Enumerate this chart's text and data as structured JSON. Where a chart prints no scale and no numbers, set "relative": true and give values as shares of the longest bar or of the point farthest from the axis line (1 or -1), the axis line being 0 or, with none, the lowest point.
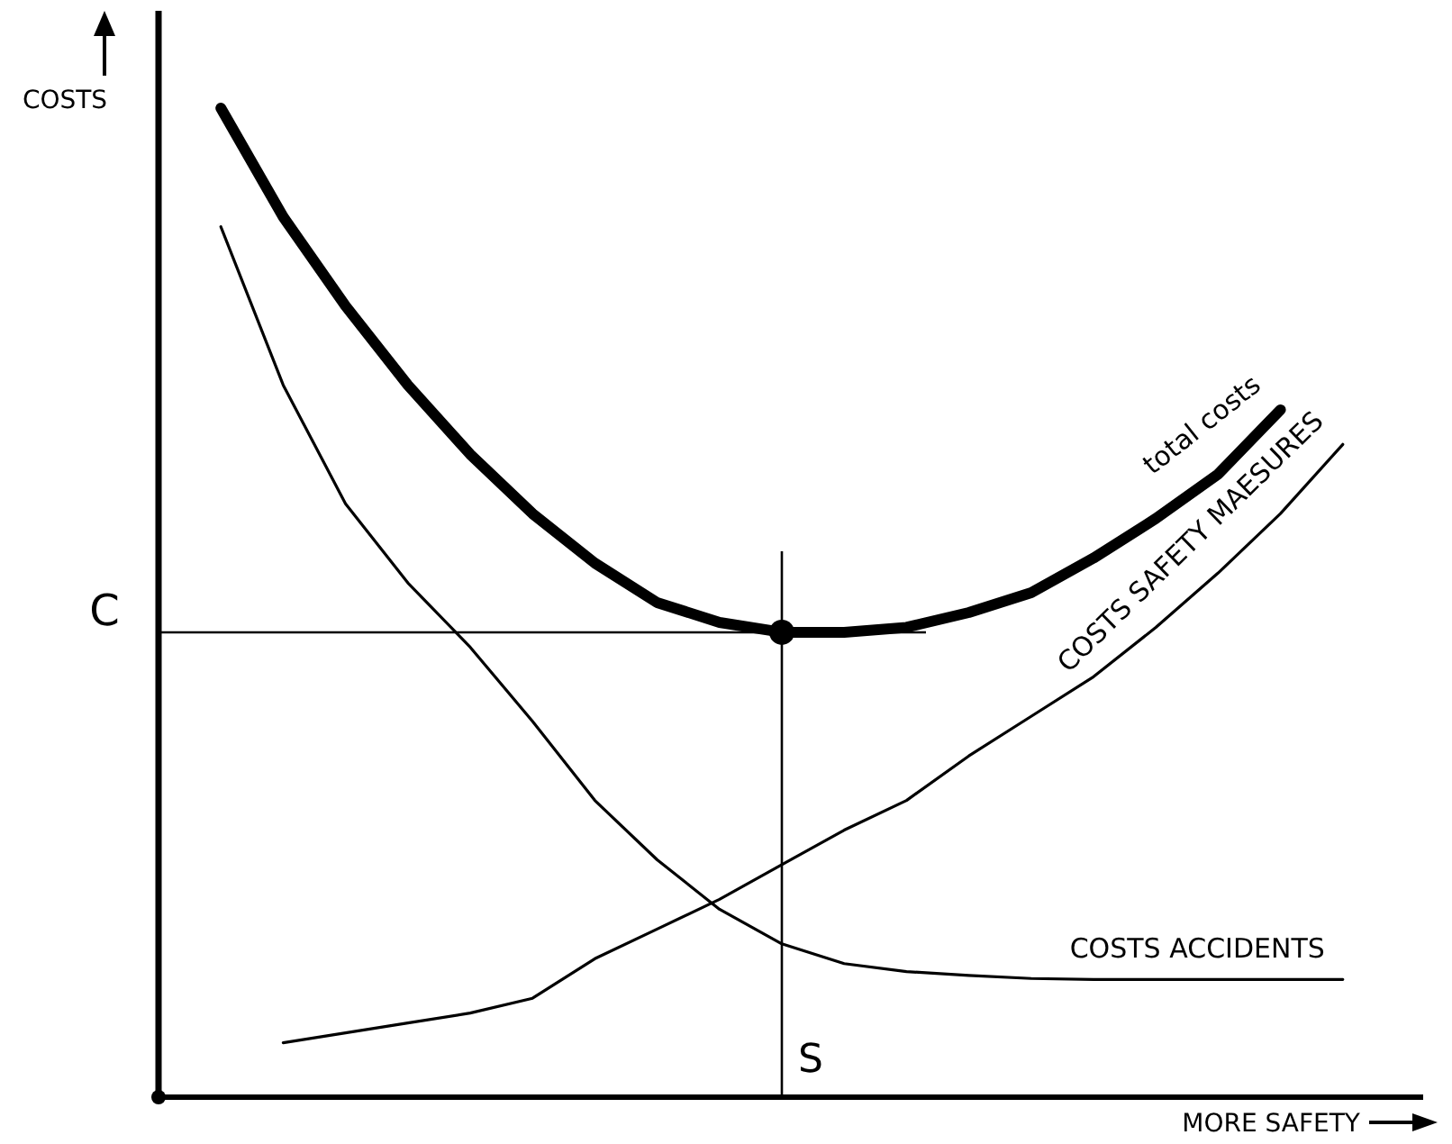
{
  "chart_data": {
    "type": "line",
    "relative": true,
    "xlabel": "MORE SAFETY",
    "ylabel": "COSTS",
    "marker": "none",
    "line_style": "solid",
    "categories": [
      null,
      null,
      null,
      null,
      null,
      null,
      null,
      null,
      null,
      null,
      null,
      null,
      null,
      null,
      null,
      null,
      null,
      null,
      null,
      null,
      null
    ],
    "series": [
      {
        "name": "total costs",
        "color": "#000000",
        "values": [
          null,
          1.0,
          0.89,
          0.8,
          0.72,
          0.65,
          0.59,
          0.54,
          0.5,
          0.48,
          0.47,
          0.47,
          0.475,
          0.49,
          0.51,
          0.545,
          0.585,
          0.63,
          0.695,
          null,
          null
        ]
      },
      {
        "name": "COSTS SAFETY MAESURES",
        "color": "#000000",
        "values": [
          null,
          null,
          0.055,
          0.065,
          0.075,
          0.085,
          0.1,
          0.14,
          0.17,
          0.2,
          0.235,
          0.27,
          0.3,
          0.345,
          0.385,
          0.425,
          0.475,
          0.53,
          0.59,
          0.66,
          null
        ]
      },
      {
        "name": "COSTS ACCIDENTS",
        "color": "#000000",
        "values": [
          null,
          0.88,
          0.72,
          0.6,
          0.52,
          0.455,
          0.38,
          0.3,
          0.24,
          0.19,
          0.155,
          0.135,
          0.127,
          0.123,
          0.12,
          0.119,
          0.119,
          0.119,
          0.119,
          0.119,
          null
        ]
      }
    ],
    "annotations": [
      "C",
      "S"
    ]
  }
}
